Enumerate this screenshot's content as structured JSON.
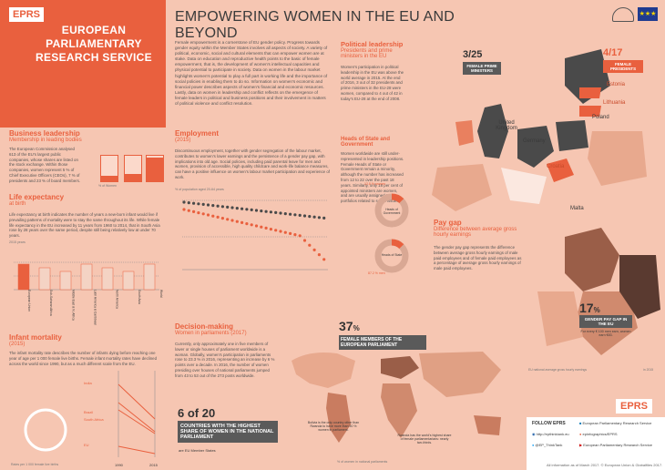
{
  "header": {
    "badge": "EPRS",
    "org": "EUROPEAN PARLIAMENTARY RESEARCH SERVICE"
  },
  "title": "EMPOWERING WOMEN IN THE EU AND BEYOND",
  "intro": "Female empowerment is a cornerstone of EU gender policy. Progress towards gender equity within the Member States involves all aspects of society. A variety of political, economic, social and cultural elements that can empower women are at stake. Data on education and reproductive health points to the basic of female empowerment, that is, the development of women's intellectual capacities and physical potential to participate in society. Data on women in the labour market highlights women's potential to play a full part in working life and the importance of social policies in enabling them to do so. Information on women's economic and financial power describes aspects of women's financial and economic resources. Lastly, data on women in leadership and conflict reflects on the emergence of female leaders in political and business positions and their involvement in matters of political violence and conflict resolution.",
  "business": {
    "title": "Business leadership",
    "subtitle": "Membership in leading bodies",
    "text": "The European Commission analysed 613 of the EU's largest public companies, whose shares are listed on the stock exchange. Within those companies, women represent 5 % of Chief Executive Officers (CEOs), 7 % of presidents and 23 % of board members.",
    "bars": [
      {
        "label": "CEOs",
        "value": 5
      },
      {
        "label": "Presidents",
        "value": 7
      },
      {
        "label": "Board members",
        "value": 23
      }
    ],
    "axis": "% of Women"
  },
  "life": {
    "title": "Life expectancy",
    "subtitle": "at birth",
    "text": "Life expectancy at birth indicates the number of years a new-born infant would live if prevailing patterns of mortality were to stay the same throughout its life. While female life expectancy in the EU increased by 11 years from 1960 to 2014, that in South Asia rose by 28 years over the same period, despite still being relatively low at under 70 years.",
    "axis": "2015 years",
    "regions": [
      "European Union",
      "Sub-Saharan Africa",
      "Middle East & N. Africa",
      "Latin America & Caribbean",
      "North America",
      "South Asia",
      "World"
    ]
  },
  "infant": {
    "title": "Infant mortality",
    "subtitle": "(2015)",
    "text": "The infant mortality rate describes the number of infants dying before reaching one year of age per 1 000 female live births. Female infant mortality rates have declined across the world since 1990, but as a much different scale from the EU.",
    "labels": [
      "India",
      "Brazil",
      "South Africa",
      "EU"
    ],
    "years": [
      "1990",
      "2015"
    ],
    "note": "Rates per 1 000 female live births"
  },
  "employment": {
    "title": "Employment",
    "subtitle": "(2015)",
    "text": "Discontinuous employment, together with gender segregation of the labour market, contributes to women's lower earnings and the persistence of a gender pay gap, with implications into old age. Social policies, including paid parental leave for men and women, provision of accessible, high quality childcare and work-life balance measures, can have a positive influence on women's labour market participation and experience of work.",
    "axis": "% of population aged 20-64 years"
  },
  "political": {
    "title": "Political leadership",
    "subtitle": "Presidents and prime ministers in the EU",
    "text": "Women's participation in political leadership in the EU was above the world average in 2015. At the end of 2016, 3 out of 32 presidents and prime ministers in the EU-28 were women, compared to 4 out of 42 in today's EU-28 at the end of 2008.",
    "pm": "3/25",
    "pm_label": "FEMALE PRIME MINISTERS",
    "pres": "4/17",
    "pres_label": "FEMALE PRESIDENTS",
    "countries": [
      "United Kingdom",
      "Germany",
      "Poland",
      "Estonia",
      "Lithuania",
      "Croatia",
      "Malta"
    ]
  },
  "heads": {
    "title": "Heads of State and Government",
    "text": "Women worldwide are still under-represented in leadership positions. Female Heads of State or Government remain a minority, although the number has increased from 12 to 22 over the past 18 years. Similarly, only 18 per cent of appointed ministers are women, and are usually assigned to portfolios related to social issues.",
    "d1": "Heads of Government",
    "d2": "Heads of State",
    "l1": "12.8 % women",
    "l2": "87.2 % men",
    "l3": "87 % men"
  },
  "paygap": {
    "title": "Pay gap",
    "subtitle": "Difference between average gross hourly earnings",
    "text": "The gender pay gap represents the difference between average gross hourly earnings of male paid employees and of female paid employees as a percentage of average gross hourly earnings of male paid employees.",
    "big": "17",
    "unit": "%",
    "banner": "GENDER PAY GAP IN THE EU",
    "note": "For every € 100 men earn, women earn €83.",
    "legend": "EU national average gross hourly earnings",
    "year": "in 2015"
  },
  "decision": {
    "title": "Decision-making",
    "subtitle": "Women in parliaments (2017)",
    "text": "Currently, only approximately one in five members of lower or single houses of parliament worldwide is a woman. Globally, women's participation in parliaments rose to 23.3 % in 2016, representing an increase by 6 % points over a decade. In 2016, the number of women presiding over houses of national parliaments jumped from 43 to 53 out of the 273 posts worldwide.",
    "six": "6 of 20",
    "six_label": "COUNTRIES WITH THE HIGHEST SHARE OF WOMEN IN THE NATIONAL PARLIAMENT",
    "six_sub": "are EU Member States",
    "pct": "37",
    "pct_label": "FEMALE MEMBERS OF THE EUROPEAN PARLIAMENT",
    "note1": "Bolivia is the only country other than Rwanda to have more than 50 % women in parliament.",
    "note2": "Rwanda has the world's highest share of female parliamentarians: nearly two-thirds.",
    "axis": "% of women in national parliaments"
  },
  "follow": {
    "title": "FOLLOW EPRS",
    "web": "http://epthinktank.eu",
    "twitter": "@EP_ThinkTank",
    "linkedin": "European Parliamentary Research Service",
    "blog": "epinfographics/EPRS",
    "youtube": "European Parliamentary Research Service"
  },
  "footer": "All information as of March 2017. © European Union & Globalfiles 2017."
}
